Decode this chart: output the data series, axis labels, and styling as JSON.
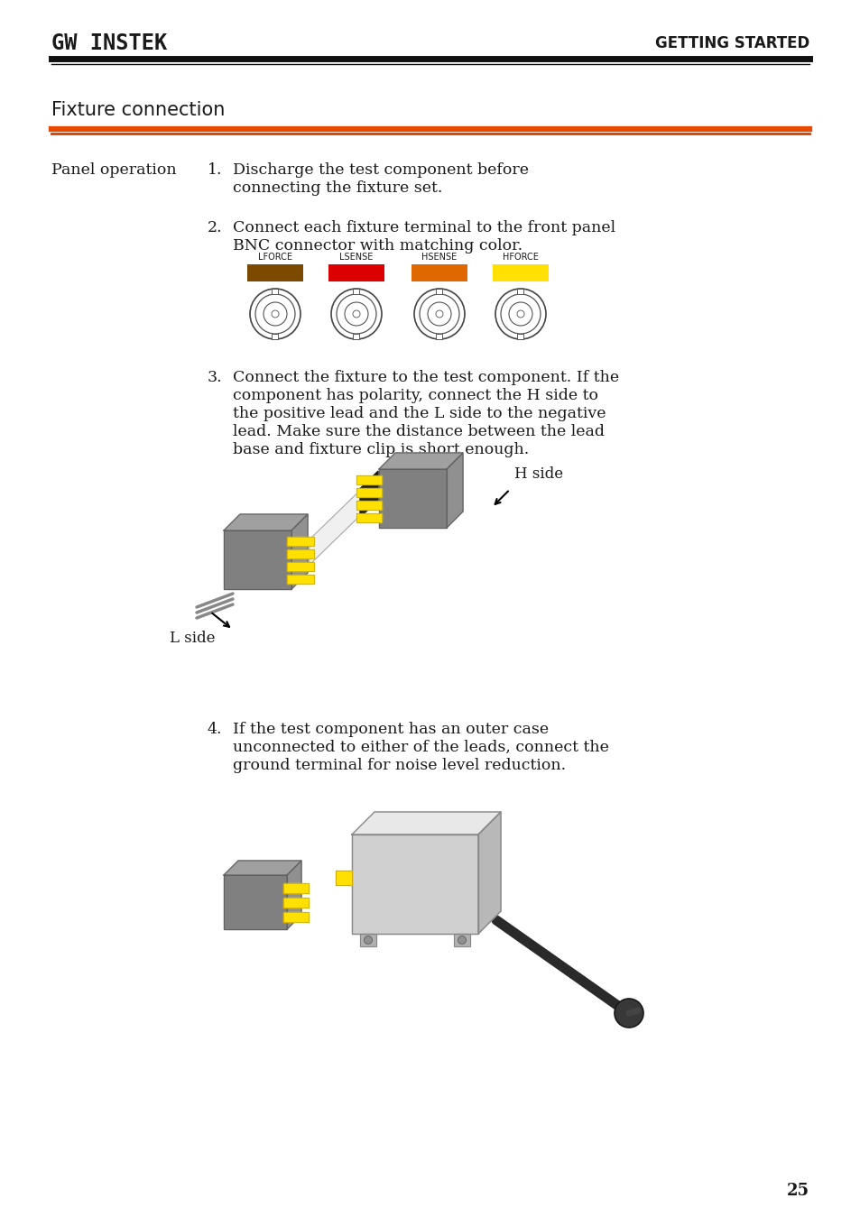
{
  "page_bg": "#ffffff",
  "header_logo_text": "GW INSTEK",
  "header_right_text": "GETTING STARTED",
  "section_title": "Fixture connection",
  "section_line_color1": "#e84c0a",
  "section_line_color2": "#d44010",
  "header_line_color": "#1a1a1a",
  "label_text": "Panel operation",
  "step1_num": "1.",
  "step1_line1": "Discharge the test component before",
  "step1_line2": "connecting the fixture set.",
  "step2_num": "2.",
  "step2_line1": "Connect each fixture terminal to the front panel",
  "step2_line2": "BNC connector with matching color.",
  "connector_labels": [
    "LFORCE",
    "LSENSE",
    "HSENSE",
    "HFORCE"
  ],
  "connector_colors": [
    "#7B4A00",
    "#DD0000",
    "#E06800",
    "#FFE000"
  ],
  "step3_num": "3.",
  "step3_lines": [
    "Connect the fixture to the test component. If the",
    "component has polarity, connect the H side to",
    "the positive lead and the L side to the negative",
    "lead. Make sure the distance between the lead",
    "base and fixture clip is short enough."
  ],
  "h_side_label": "H side",
  "l_side_label": "L side",
  "step4_num": "4.",
  "step4_lines": [
    "If the test component has an outer case",
    "unconnected to either of the leads, connect the",
    "ground terminal for noise level reduction."
  ],
  "page_num": "25",
  "text_color": "#1a1a1a",
  "gray1": "#808080",
  "gray2": "#606060",
  "gray3": "#a0a0a0",
  "gray4": "#909090",
  "yellow": "#FFE000",
  "yellow_dark": "#C8A000",
  "white_comp": "#f5f5f5",
  "body_font_size": 12.5
}
